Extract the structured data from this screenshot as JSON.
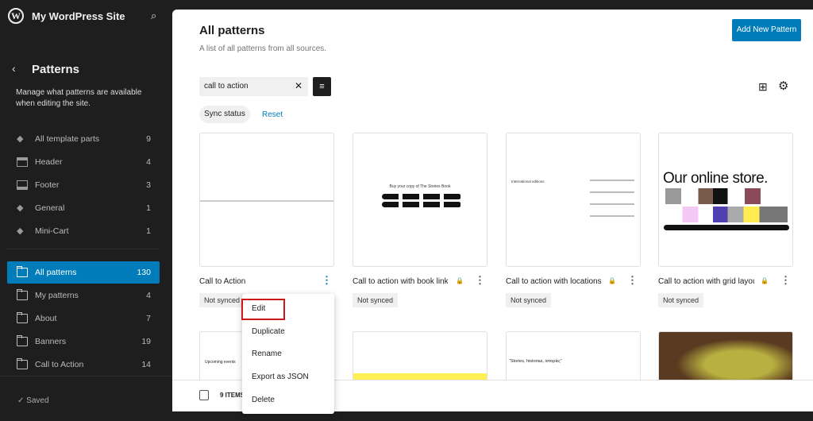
{
  "sidebar": {
    "site_title": "My WordPress Site",
    "section_title": "Patterns",
    "description": "Manage what patterns are available when editing the site.",
    "template_parts": [
      {
        "label": "All template parts",
        "count": "9",
        "icon": "symbol-icon"
      },
      {
        "label": "Header",
        "count": "4",
        "icon": "header-icon"
      },
      {
        "label": "Footer",
        "count": "3",
        "icon": "footer-icon"
      },
      {
        "label": "General",
        "count": "1",
        "icon": "symbol-icon"
      },
      {
        "label": "Mini-Cart",
        "count": "1",
        "icon": "symbol-icon"
      }
    ],
    "categories": [
      {
        "label": "All patterns",
        "count": "130",
        "active": true
      },
      {
        "label": "My patterns",
        "count": "4"
      },
      {
        "label": "About",
        "count": "7"
      },
      {
        "label": "Banners",
        "count": "19"
      },
      {
        "label": "Call to Action",
        "count": "14"
      }
    ],
    "status": "Saved"
  },
  "header": {
    "title": "All patterns",
    "subtitle": "A list of all patterns from all sources.",
    "add_button": "Add New Pattern"
  },
  "search": {
    "value": "call to action"
  },
  "filters": {
    "sync_status": "Sync status",
    "reset": "Reset"
  },
  "patterns": [
    {
      "title": "Call to Action",
      "badge": "Not synced",
      "locked": false
    },
    {
      "title": "Call to action with book links",
      "badge": "Not synced",
      "locked": true,
      "preview": "Buy your copy of The Stories Book"
    },
    {
      "title": "Call to action with locations",
      "badge": "Not synced",
      "locked": true,
      "preview": "International editions"
    },
    {
      "title": "Call to action with grid layout",
      "badge": "Not synced",
      "locked": true,
      "preview": "Our online store."
    }
  ],
  "row2": {
    "preview1": "Upcoming events",
    "preview3": "“Stories, historias, iστορίες”"
  },
  "footer": {
    "items": "9 ITEMS"
  },
  "context_menu": [
    "Edit",
    "Duplicate",
    "Rename",
    "Export as JSON",
    "Delete"
  ],
  "colors": {
    "accent": "#007cba",
    "sidebar_bg": "#1e1e1e",
    "highlight": "#cc1818"
  }
}
